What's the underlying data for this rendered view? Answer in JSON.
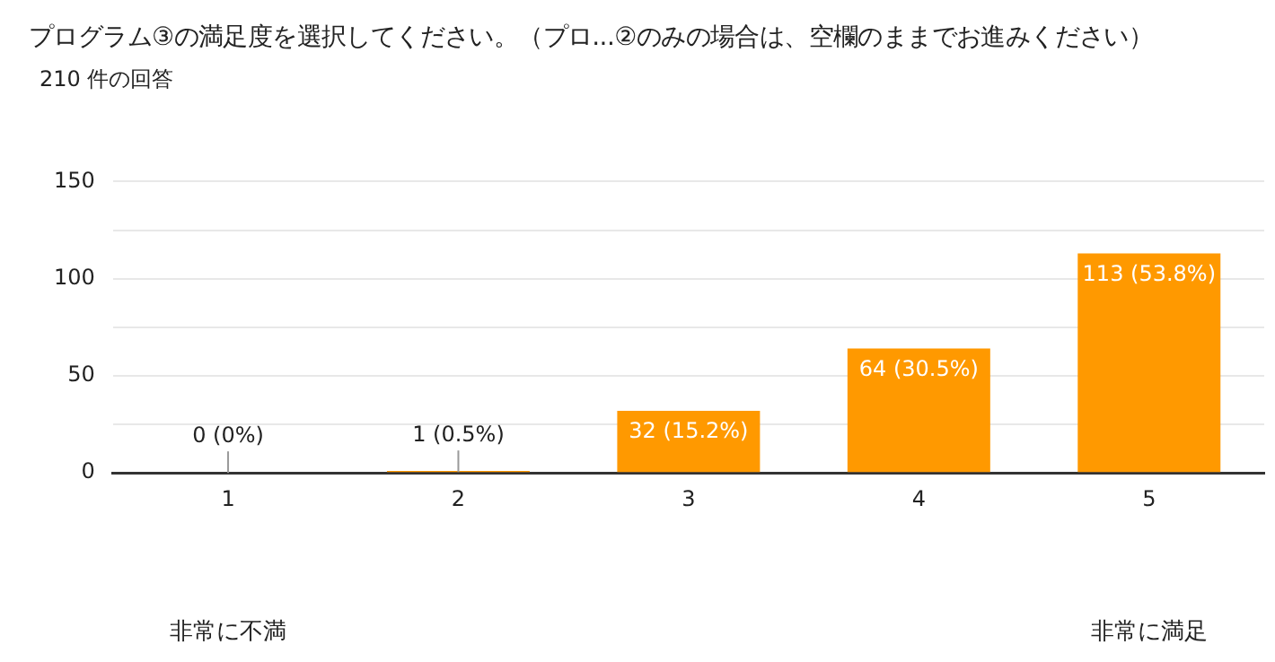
{
  "chart_data": {
    "type": "bar",
    "title": "プログラム③の満足度を選択してください。（プロ...②のみの場合は、空欄のままでお進みください）",
    "subtitle": "210 件の回答",
    "categories": [
      "1",
      "2",
      "3",
      "4",
      "5"
    ],
    "values": [
      0,
      1,
      32,
      64,
      113
    ],
    "color": "#ff9900",
    "value_labels": [
      "0 (0%)",
      "1 (0.5%)",
      "32 (15.2%)",
      "64 (30.5%)",
      "113 (53.8%)"
    ],
    "ylim": [
      0,
      150
    ],
    "yticks": [
      0,
      {
        "value": 25,
        "label": null
      },
      50,
      {
        "value": 75,
        "label": null
      },
      100,
      {
        "value": 125,
        "label": null
      },
      150
    ],
    "grid": "y",
    "legend": false,
    "annotations": [
      "非常に不満",
      "非常に満足"
    ]
  }
}
